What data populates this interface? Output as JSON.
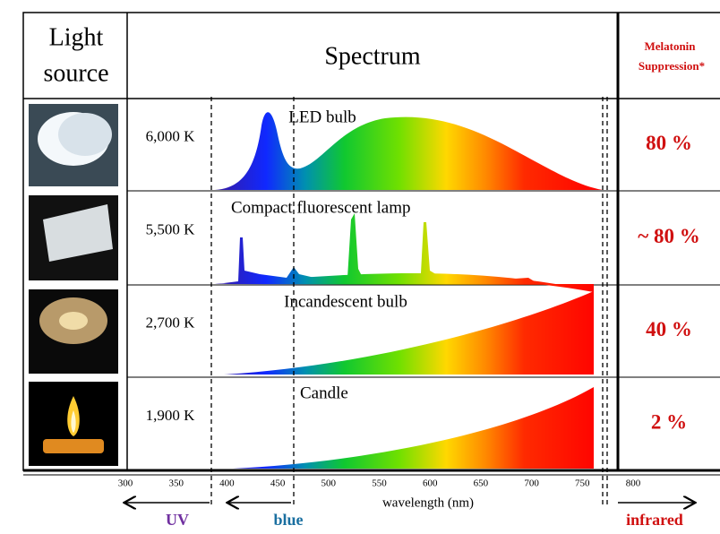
{
  "header": {
    "source": [
      "Light",
      "source"
    ],
    "spectrum": "Spectrum",
    "melatonin": [
      "Melatonin",
      "Suppression*"
    ]
  },
  "rows": [
    {
      "temperature": "6,000 K",
      "label": "LED bulb",
      "suppression": "80 %"
    },
    {
      "temperature": "5,500 K",
      "label": "Compact fluorescent lamp",
      "suppression": "~ 80 %"
    },
    {
      "temperature": "2,700 K",
      "label": "Incandescent bulb",
      "suppression": "40 %"
    },
    {
      "temperature": "1,900 K",
      "label": "Candle",
      "suppression": "2 %"
    }
  ],
  "axis": {
    "ticks": [
      "300",
      "350",
      "400",
      "450",
      "500",
      "550",
      "600",
      "650",
      "700",
      "750",
      "800"
    ],
    "label": "wavelength (nm)"
  },
  "regions": {
    "uv": "UV",
    "blue": "blue",
    "infrared": "infrared"
  }
}
